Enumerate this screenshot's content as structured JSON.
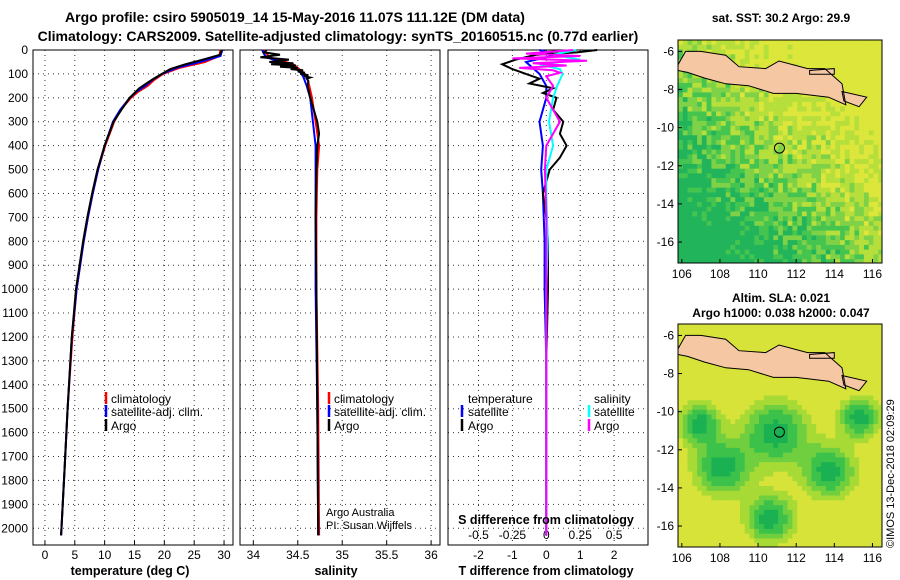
{
  "header": {
    "line1": "Argo profile: csiro 5905019_14 15-May-2016 11.07S 111.12E (DM data)",
    "line2": "Climatology: CARS2009. Satellite-adjusted climatology: synTS_20160515.nc (0.77d earlier)"
  },
  "colors": {
    "climatology": "#ff0000",
    "satellite": "#0000ff",
    "argo": "#000000",
    "sat_salinity": "#00ffff",
    "argo_salinity": "#ff00ff"
  },
  "chart_data": [
    {
      "id": "temperature",
      "type": "line",
      "xlabel": "temperature (deg C)",
      "ylabel": "depth",
      "xlim": [
        -2,
        31.5
      ],
      "ylim": [
        2070,
        0
      ],
      "xticks": [
        0,
        5,
        10,
        15,
        20,
        25,
        30
      ],
      "yticks": [
        0,
        100,
        200,
        300,
        400,
        500,
        600,
        700,
        800,
        900,
        1000,
        1100,
        1200,
        1300,
        1400,
        1500,
        1600,
        1700,
        1800,
        1900,
        2000
      ],
      "legend": [
        "climatology",
        "satellite-adj. clim.",
        "Argo"
      ],
      "series": [
        {
          "name": "climatology",
          "depth": [
            0,
            25,
            50,
            75,
            100,
            125,
            150,
            175,
            200,
            250,
            300,
            400,
            500,
            600,
            700,
            800,
            1000,
            1200,
            1500,
            1750,
            2030
          ],
          "values": [
            29.4,
            29.2,
            26.8,
            22.5,
            19.8,
            18.3,
            17.2,
            15.6,
            14.4,
            12.7,
            11.6,
            10.1,
            8.9,
            8.0,
            7.2,
            6.5,
            5.3,
            4.6,
            3.8,
            3.3,
            2.7
          ]
        },
        {
          "name": "satellite-adj. clim.",
          "depth": [
            0,
            25,
            50,
            75,
            100,
            125,
            150,
            175,
            200,
            250,
            300,
            400,
            500,
            600,
            700,
            800,
            1000,
            1200,
            1500,
            1750,
            2030
          ],
          "values": [
            29.7,
            29.4,
            25.9,
            22.0,
            19.6,
            18.0,
            16.8,
            15.3,
            14.2,
            12.6,
            11.4,
            10.0,
            8.9,
            8.0,
            7.2,
            6.5,
            5.3,
            4.5,
            3.8,
            3.3,
            2.7
          ]
        },
        {
          "name": "Argo",
          "depth": [
            0,
            20,
            40,
            60,
            80,
            100,
            120,
            140,
            160,
            180,
            200,
            250,
            300,
            400,
            500,
            600,
            700,
            800,
            1000,
            1200,
            1500,
            1750,
            2030
          ],
          "values": [
            29.6,
            29.3,
            26.5,
            23.5,
            21.0,
            19.6,
            18.2,
            17.0,
            15.8,
            15.0,
            14.2,
            12.8,
            11.5,
            10.0,
            8.8,
            7.9,
            7.1,
            6.4,
            5.2,
            4.5,
            3.8,
            3.3,
            2.7
          ]
        }
      ]
    },
    {
      "id": "salinity",
      "type": "line",
      "xlabel": "salinity",
      "xlim": [
        33.85,
        36.1
      ],
      "ylim": [
        2070,
        0
      ],
      "xticks": [
        34,
        34.5,
        35,
        35.5,
        36
      ],
      "legend": [
        "climatology",
        "satellite-adj. clim.",
        "Argo"
      ],
      "annotations": [
        "Argo Australia",
        "PI: Susan Wijffels"
      ],
      "series": [
        {
          "name": "climatology",
          "depth": [
            0,
            30,
            60,
            90,
            110,
            150,
            200,
            300,
            400,
            500,
            700,
            1000,
            1500,
            2030
          ],
          "values": [
            34.12,
            34.18,
            34.45,
            34.55,
            34.6,
            34.63,
            34.66,
            34.7,
            34.74,
            34.72,
            34.71,
            34.71,
            34.73,
            34.74
          ]
        },
        {
          "name": "satellite-adj. clim.",
          "depth": [
            0,
            30,
            60,
            90,
            110,
            150,
            200,
            300,
            400,
            500,
            700,
            1000,
            1500,
            2030
          ],
          "values": [
            34.1,
            34.14,
            34.4,
            34.52,
            34.56,
            34.6,
            34.64,
            34.67,
            34.7,
            34.7,
            34.7,
            34.7,
            34.72,
            34.73
          ]
        },
        {
          "name": "Argo",
          "depth": [
            0,
            10,
            20,
            30,
            40,
            50,
            55,
            60,
            65,
            70,
            75,
            80,
            85,
            90,
            95,
            100,
            105,
            110,
            115,
            120,
            130,
            150,
            200,
            250,
            300,
            350,
            400,
            500,
            700,
            1000,
            1500,
            2030
          ],
          "values": [
            34.15,
            34.12,
            34.3,
            34.08,
            34.4,
            34.18,
            34.45,
            34.2,
            34.48,
            34.3,
            34.5,
            34.42,
            34.56,
            34.5,
            34.58,
            34.53,
            34.62,
            34.57,
            34.64,
            34.6,
            34.62,
            34.61,
            34.64,
            34.68,
            34.72,
            34.74,
            34.72,
            34.71,
            34.7,
            34.71,
            34.72,
            34.73
          ]
        }
      ]
    },
    {
      "id": "difference",
      "type": "line",
      "xlabel": "T difference from climatology",
      "xlabel2": "S difference from climatology",
      "xlim": [
        -2.9,
        3.0
      ],
      "ylim": [
        2070,
        0
      ],
      "xticks": [
        -2,
        -1,
        0,
        1,
        2
      ],
      "xticks2": [
        -0.5,
        -0.25,
        0,
        0.25,
        0.5
      ],
      "xticklabels2": [
        "-0.5",
        "-0.25",
        "0",
        "0.25",
        "0.5"
      ],
      "legend_left_title": "temperature",
      "legend_right_title": "salinity",
      "legend_left": [
        "satellite",
        "Argo"
      ],
      "legend_right": [
        "satellite",
        "Argo"
      ],
      "series": [
        {
          "name": "temperature satellite",
          "depth": [
            0,
            20,
            50,
            100,
            150,
            200,
            300,
            400,
            500,
            600,
            800,
            1000,
            1300,
            1600,
            2030
          ],
          "values": [
            -0.2,
            0.3,
            -0.6,
            -0.2,
            0.0,
            0.0,
            -0.2,
            -0.1,
            -0.15,
            -0.1,
            -0.05,
            -0.05,
            0.0,
            0.0,
            0.0
          ]
        },
        {
          "name": "temperature Argo",
          "depth": [
            0,
            10,
            20,
            40,
            60,
            80,
            100,
            120,
            140,
            160,
            180,
            200,
            250,
            300,
            350,
            400,
            450,
            500,
            600,
            700,
            800,
            1000,
            1300,
            1600,
            2030
          ],
          "values": [
            1.5,
            0.9,
            -0.3,
            -0.9,
            -1.3,
            -1.0,
            -0.6,
            -0.2,
            -0.5,
            0.2,
            -0.1,
            0.3,
            0.2,
            0.5,
            0.4,
            0.6,
            0.4,
            0.1,
            -0.1,
            0.0,
            0.05,
            0.05,
            0.0,
            0.0,
            0.0
          ]
        },
        {
          "name": "salinity satellite",
          "depth": [
            0,
            20,
            40,
            60,
            80,
            100,
            150,
            200,
            300,
            400,
            500,
            600,
            800,
            1000,
            1300,
            1600,
            2030
          ],
          "values": [
            0.22,
            0.05,
            0.25,
            -0.05,
            0.1,
            0.12,
            0.08,
            0.05,
            0.02,
            0.05,
            0.0,
            0.0,
            0.01,
            0.0,
            0.0,
            0.0,
            0.0
          ]
        },
        {
          "name": "salinity Argo",
          "depth": [
            0,
            15,
            25,
            35,
            45,
            55,
            65,
            75,
            85,
            95,
            110,
            150,
            200,
            250,
            300,
            400,
            500,
            700,
            1000,
            1500,
            2030
          ],
          "values": [
            0.2,
            -0.15,
            0.25,
            -0.25,
            0.3,
            -0.1,
            0.15,
            -0.2,
            0.05,
            0.1,
            0.0,
            0.05,
            0.0,
            0.05,
            0.1,
            0.0,
            -0.01,
            0.0,
            0.0,
            0.0,
            0.0
          ]
        }
      ]
    },
    {
      "id": "sst-map",
      "type": "heatmap",
      "title": "sat. SST: 30.2 Argo: 29.9",
      "xlim": [
        105.8,
        116.5
      ],
      "ylim": [
        -17.1,
        -5.4
      ],
      "xticks": [
        106,
        108,
        110,
        112,
        114,
        116
      ],
      "yticks": [
        -6,
        -8,
        -10,
        -12,
        -14,
        -16
      ],
      "argo_position": {
        "lon": 111.12,
        "lat": -11.07
      }
    },
    {
      "id": "sla-map",
      "type": "heatmap",
      "title": "Altim. SLA: 0.021",
      "subtitle": "Argo h1000: 0.038 h2000: 0.047",
      "xlim": [
        105.8,
        116.5
      ],
      "ylim": [
        -17.1,
        -5.4
      ],
      "xticks": [
        106,
        108,
        110,
        112,
        114,
        116
      ],
      "yticks": [
        -6,
        -8,
        -10,
        -12,
        -14,
        -16
      ],
      "argo_position": {
        "lon": 111.12,
        "lat": -11.07
      }
    }
  ],
  "footer": {
    "credit": "©IMOS 13-Dec-2018 02:09:29"
  }
}
